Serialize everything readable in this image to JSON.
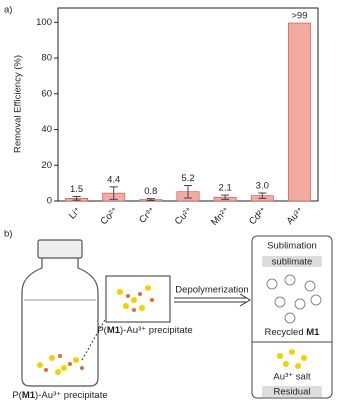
{
  "chart_data": {
    "type": "bar",
    "panel_label": "a)",
    "y_label": "Removal Efficiency (%)",
    "categories": [
      "Li⁺",
      "Co²⁺",
      "Cr³⁺",
      "Cu²⁺",
      "Mn²⁺",
      "Cd²⁺",
      "Au³⁺"
    ],
    "values": [
      1.5,
      4.4,
      0.8,
      5.2,
      2.1,
      3.0,
      99.6
    ],
    "value_labels": [
      "1.5",
      "4.4",
      "0.8",
      "5.2",
      "2.1",
      "3.0",
      ">99"
    ],
    "errors": [
      1.0,
      3.5,
      0.5,
      3.5,
      1.2,
      1.5,
      0
    ],
    "color": "#f4aaa3",
    "edge_color": "#c0504d",
    "ylim": [
      0,
      108
    ],
    "yticks": [
      0,
      20,
      40,
      60,
      80,
      100
    ]
  },
  "diagram": {
    "panel_label": "b)",
    "bottle_label": [
      "P(",
      "M1",
      ")-Au³⁺ precipitate"
    ],
    "inset_label": [
      "P(",
      "M1",
      ")-Au³⁺ precipitate"
    ],
    "arrow_label": "Depolymerization",
    "box": {
      "title": "Sublimation",
      "top_band": "sublimate",
      "recycled": [
        "Recycled ",
        "M1"
      ],
      "salt": "Au³⁺ salt",
      "bottom_band": "Residual"
    }
  }
}
